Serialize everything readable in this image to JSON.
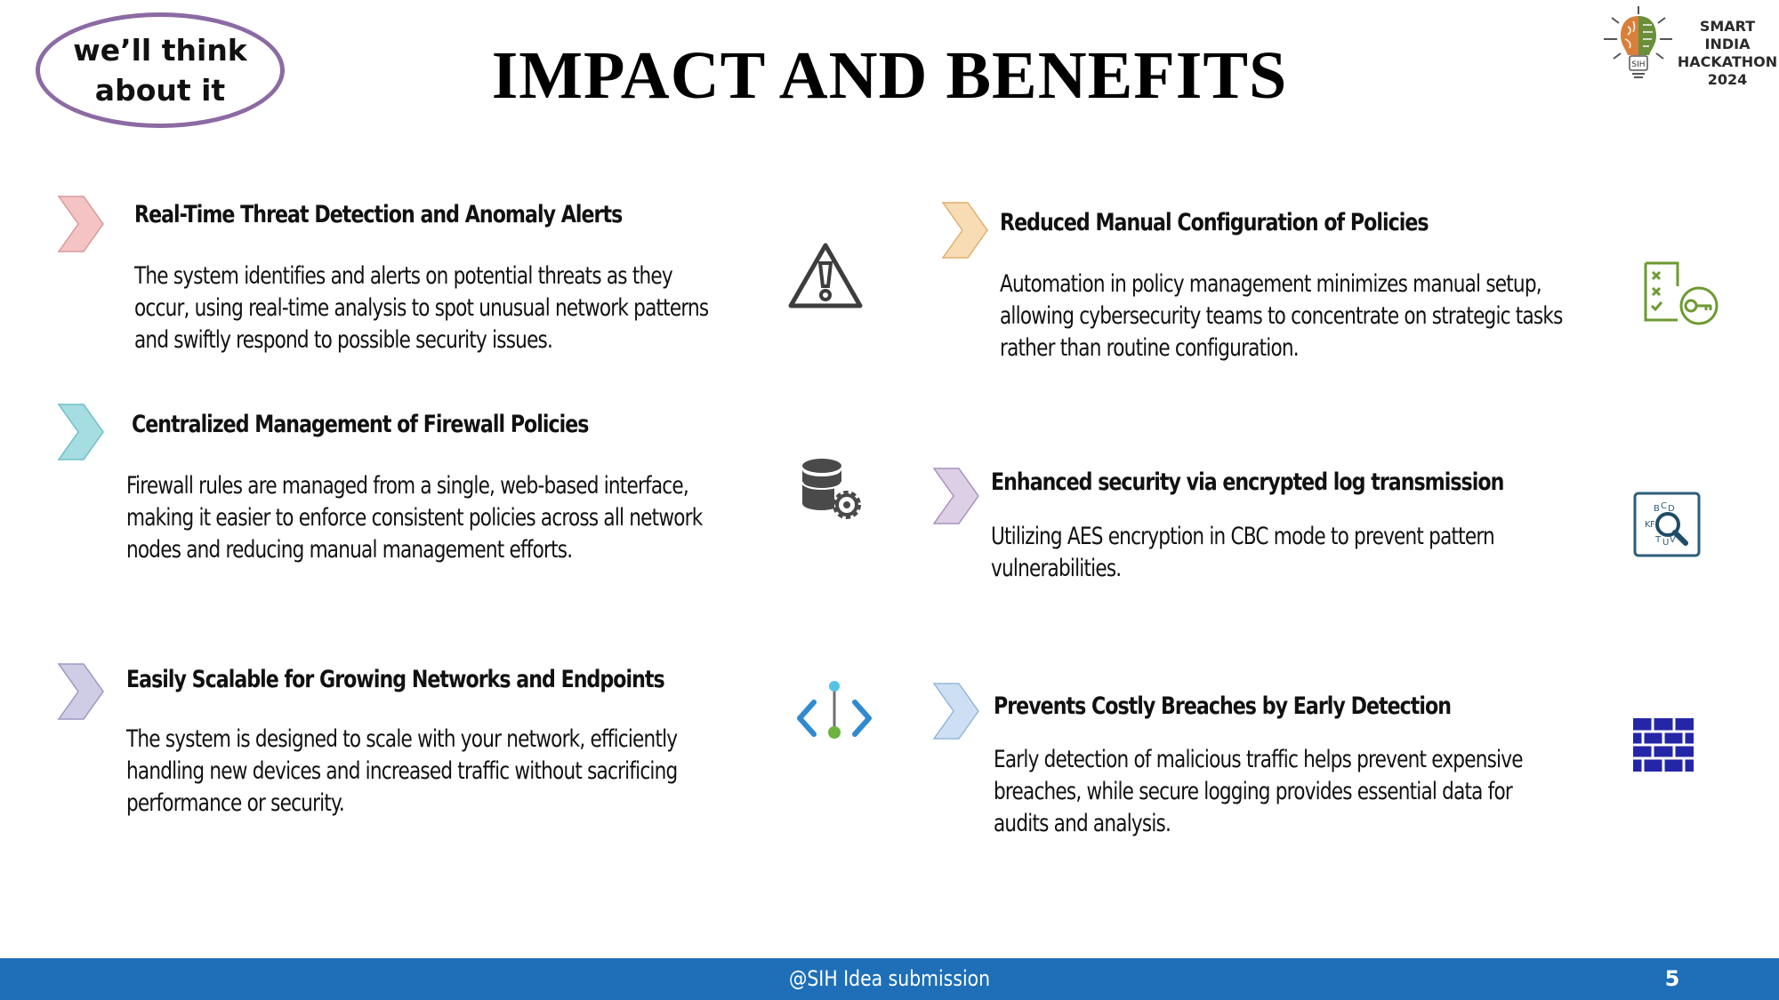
{
  "team": {
    "label_line1": "we’ll think",
    "label_line2": "about it"
  },
  "title": "IMPACT AND BENEFITS",
  "logo": {
    "line1": "SMART INDIA",
    "line2": "HACKATHON",
    "line3": "2024",
    "badge": "SIH",
    "icon": "brain-bulb-icon"
  },
  "items": [
    {
      "title": "Real-Time Threat Detection and Anomaly Alerts",
      "desc": [
        "The system identifies and alerts on potential threats as they",
        "occur, using real-time analysis to spot unusual network patterns",
        "and swiftly respond to possible security issues."
      ],
      "icon": "warning-triangle-icon",
      "chevron_color": "#f4c4c4"
    },
    {
      "title": "Centralized Management of Firewall Policies",
      "desc": [
        "Firewall rules are managed from a single, web-based interface,",
        "making it easier to enforce consistent policies across all network",
        "nodes and reducing manual management efforts."
      ],
      "icon": "database-gear-icon",
      "chevron_color": "#a6dde2"
    },
    {
      "title": "Easily Scalable for Growing Networks and Endpoints",
      "desc": [
        "The system is designed to scale with your network, efficiently",
        "handling new devices and increased traffic without sacrificing",
        "performance or security."
      ],
      "icon": "code-network-icon",
      "chevron_color": "#cfcde5"
    },
    {
      "title": "Reduced Manual Configuration of Policies",
      "desc": [
        "Automation in policy management minimizes manual setup,",
        "allowing cybersecurity teams to concentrate on strategic tasks",
        "rather than routine configuration."
      ],
      "icon": "checklist-key-icon",
      "chevron_color": "#f8dcb4"
    },
    {
      "title": "Enhanced security via encrypted log transmission",
      "desc": [
        "Utilizing AES encryption in CBC mode to prevent pattern",
        "vulnerabilities."
      ],
      "icon": "encryption-search-icon",
      "chevron_color": "#dccfe6"
    },
    {
      "title": "Prevents Costly Breaches by Early Detection",
      "desc": [
        "Early detection of malicious traffic helps prevent expensive",
        "breaches, while secure logging provides essential data for",
        "audits and analysis."
      ],
      "icon": "firewall-brick-icon",
      "chevron_color": "#cde0f3"
    }
  ],
  "footer": {
    "text": "@SIH Idea submission",
    "page": "5"
  },
  "colors": {
    "footer_bg": "#1e6fb8",
    "oval_border": "#8c6aa3"
  }
}
